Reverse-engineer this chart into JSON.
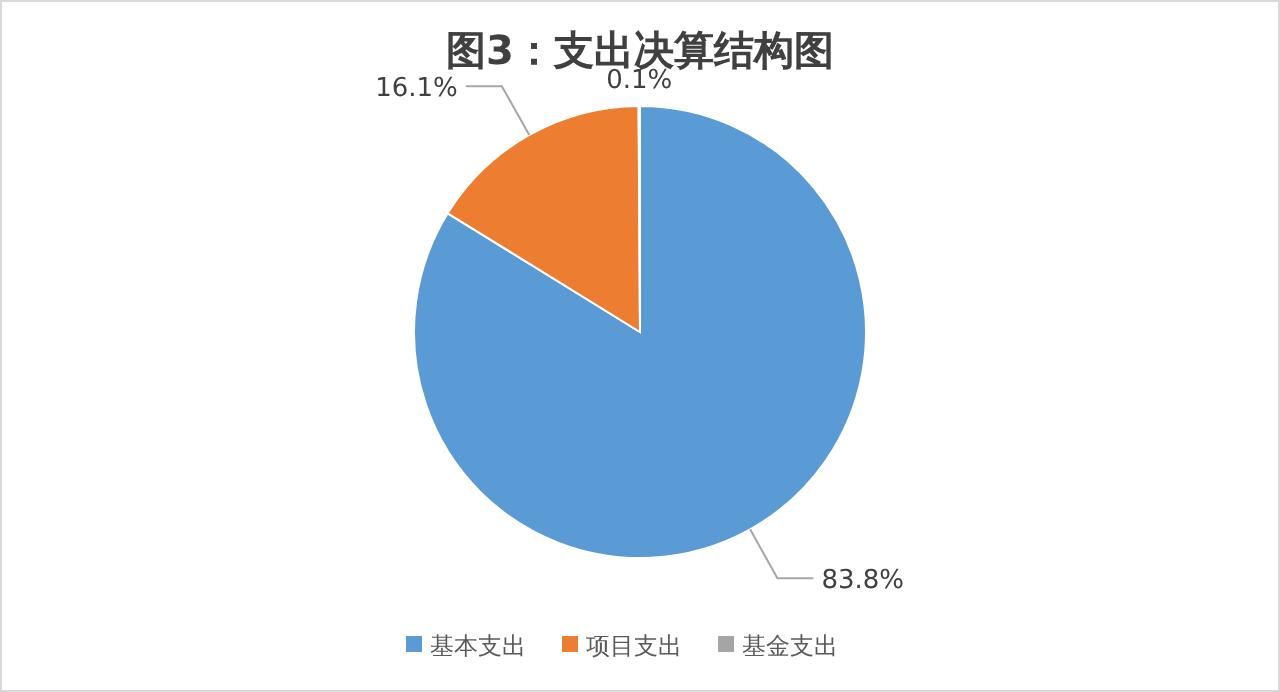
{
  "chart_data": {
    "type": "pie",
    "title": "图3：支出决算结构图",
    "categories": [
      "基本支出",
      "项目支出",
      "基金支出"
    ],
    "values": [
      83.8,
      16.1,
      0.1
    ],
    "colors": [
      "#5b9bd5",
      "#ed7d31",
      "#a5a5a5"
    ],
    "value_labels": [
      "83.8%",
      "16.1%",
      "0.1%"
    ],
    "legend": "bottom"
  }
}
